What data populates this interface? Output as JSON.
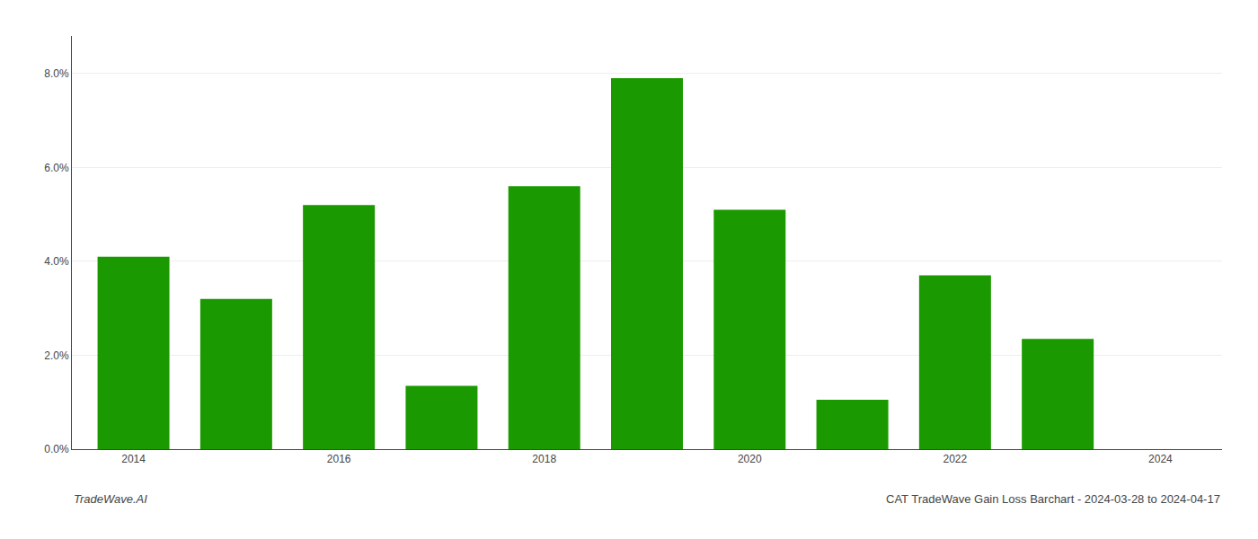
{
  "chart_data": {
    "type": "bar",
    "x": [
      2014,
      2015,
      2016,
      2017,
      2018,
      2019,
      2020,
      2021,
      2022,
      2023
    ],
    "values": [
      0.041,
      0.032,
      0.052,
      0.0135,
      0.056,
      0.079,
      0.051,
      0.0105,
      0.037,
      0.0235
    ],
    "color": "#1a9a00",
    "xlim": [
      2013.4,
      2024.6
    ],
    "xticks": [
      2014,
      2016,
      2018,
      2020,
      2022,
      2024
    ],
    "ylim": [
      0,
      0.088
    ],
    "yticks": [
      {
        "value": 0.0,
        "label": "0.0%"
      },
      {
        "value": 0.02,
        "label": "2.0%"
      },
      {
        "value": 0.04,
        "label": "4.0%"
      },
      {
        "value": 0.06,
        "label": "6.0%"
      },
      {
        "value": 0.08,
        "label": "8.0%"
      }
    ],
    "grid": "y",
    "annotations": [
      "TradeWave.AI",
      "CAT TradeWave Gain Loss Barchart - 2024-03-28 to 2024-04-17"
    ]
  }
}
